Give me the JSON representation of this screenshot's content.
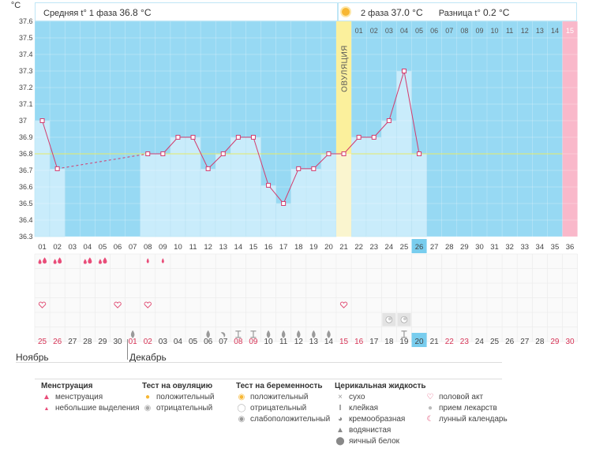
{
  "header": {
    "unit": "°C",
    "phase1_label": "Средняя t° 1 фаза",
    "phase1_value": "36.8 °C",
    "phase2_label": "2 фаза",
    "phase2_value": "37.0 °C",
    "diff_label": "Разница t°",
    "diff_value": "0.2 °C"
  },
  "ovulation_label": "ОВУЛЯЦИЯ",
  "today_day": 26,
  "months": {
    "first": "Ноябрь",
    "second": "Декабрь"
  },
  "colors": {
    "background": "#97d9f3",
    "bar_fill": "#c9ecfb",
    "bar_edge": "#9fd7ef",
    "line": "#d33b6d",
    "coverline": "#e5ea6a",
    "ovulation": "#fbf09c",
    "ovulation_bar": "#faf5cf",
    "period_end": "#f9b8ca",
    "today": "#78cdee",
    "weekend": "#d63456",
    "menstruation_icon": "#e94d79",
    "heart_icon": "#e0476f",
    "cm_icon": "#9a9a9a"
  },
  "chart_data": {
    "type": "line",
    "title": "",
    "xlabel": "",
    "ylabel": "°C",
    "ylim": [
      36.3,
      37.6
    ],
    "y_ticks": [
      "37.6",
      "37.5",
      "37.4",
      "37.3",
      "37.2",
      "37.1",
      "37",
      "36.9",
      "36.8",
      "36.7",
      "36.6",
      "36.5",
      "36.4",
      "36.3"
    ],
    "coverline": 36.8,
    "ovulation_day": 21,
    "cycle_days": [
      "01",
      "02",
      "03",
      "04",
      "05",
      "06",
      "07",
      "08",
      "09",
      "10",
      "11",
      "12",
      "13",
      "14",
      "15",
      "16",
      "17",
      "18",
      "19",
      "20",
      "21",
      "22",
      "23",
      "24",
      "25",
      "26",
      "27",
      "28",
      "29",
      "30",
      "31",
      "32",
      "33",
      "34",
      "35",
      "36"
    ],
    "phase2_days": [
      "01",
      "02",
      "03",
      "04",
      "05",
      "06",
      "07",
      "08",
      "09",
      "10",
      "11",
      "12",
      "13",
      "14",
      "15"
    ],
    "dates": [
      "25",
      "26",
      "27",
      "28",
      "29",
      "30",
      "01",
      "02",
      "03",
      "04",
      "05",
      "06",
      "07",
      "08",
      "09",
      "10",
      "11",
      "12",
      "13",
      "14",
      "15",
      "16",
      "17",
      "18",
      "19",
      "20",
      "21",
      "22",
      "23",
      "24",
      "25",
      "26",
      "27",
      "28",
      "29",
      "30"
    ],
    "weekend_dates_idx": [
      0,
      1,
      6,
      7,
      13,
      14,
      20,
      21,
      27,
      28,
      34,
      35
    ],
    "series": [
      {
        "x": [
          1,
          2,
          8,
          9,
          10,
          11,
          12,
          13,
          14,
          15,
          16,
          17,
          18,
          19,
          20,
          21,
          22,
          23,
          24,
          25,
          26
        ],
        "y": [
          37.0,
          36.71,
          36.8,
          36.8,
          36.9,
          36.9,
          36.71,
          36.8,
          36.9,
          36.9,
          36.61,
          36.5,
          36.71,
          36.71,
          36.8,
          36.8,
          36.9,
          36.9,
          37.0,
          37.3,
          36.8
        ]
      }
    ],
    "menstruation_days": {
      "heavy": [
        1,
        2,
        4,
        5
      ],
      "spotting": [
        8,
        9
      ]
    },
    "intercourse_days": [
      1,
      6,
      8,
      21
    ],
    "ovulation_tests_negative": [
      24,
      25
    ],
    "cervical_fluid": {
      "watery": [
        7,
        12,
        16,
        17,
        18,
        19,
        20
      ],
      "creamy": [
        13
      ],
      "sticky": [
        14,
        15,
        25
      ]
    }
  },
  "legend": {
    "menstruation": {
      "title": "Менструация",
      "items": [
        "менструация",
        "небольшие выделения"
      ]
    },
    "ovulation_test": {
      "title": "Тест на овуляцию",
      "items": [
        "положительный",
        "отрицательный"
      ]
    },
    "pregnancy_test": {
      "title": "Тест на беременность",
      "items": [
        "положительный",
        "отрицательный",
        "слабоположительный"
      ]
    },
    "cervical_fluid": {
      "title": "Церикальная жидкость",
      "items": [
        "сухо",
        "клейкая",
        "кремообразная",
        "водянистая",
        "яичный белок"
      ]
    },
    "other": {
      "items": [
        "половой акт",
        "прием лекарств",
        "лунный календарь"
      ]
    }
  }
}
